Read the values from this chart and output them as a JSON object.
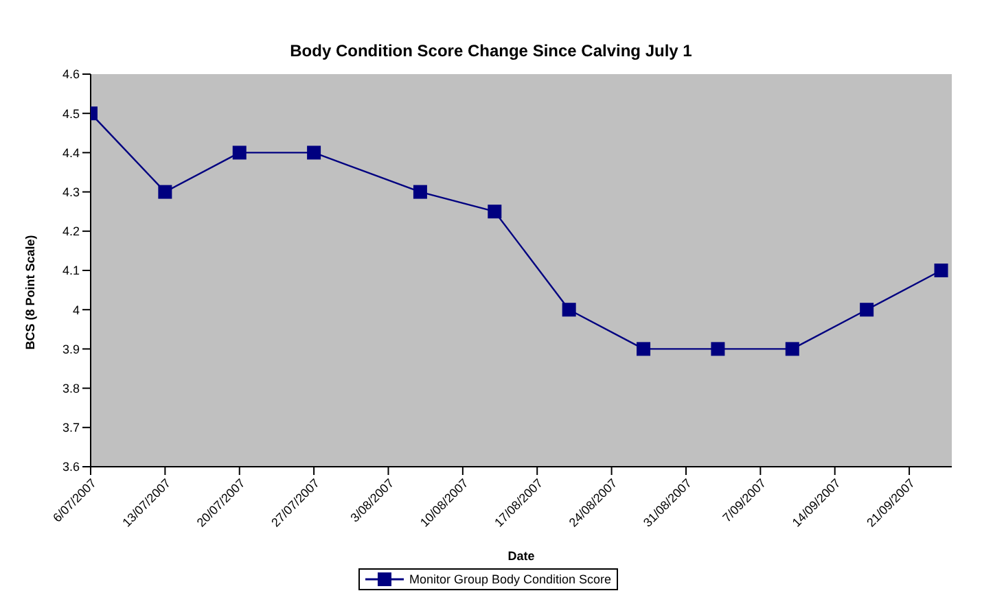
{
  "chart_data": {
    "type": "line",
    "title": "Body Condition Score Change Since Calving July 1",
    "xlabel": "Date",
    "ylabel": "BCS (8 Point Scale)",
    "x": [
      "2007-07-06",
      "2007-07-13",
      "2007-07-20",
      "2007-07-27",
      "2007-08-06",
      "2007-08-13",
      "2007-08-20",
      "2007-08-27",
      "2007-09-03",
      "2007-09-10",
      "2007-09-17",
      "2007-09-24"
    ],
    "series": [
      {
        "name": "Monitor Group Body Condition Score",
        "color": "#000080",
        "values": [
          4.5,
          4.3,
          4.4,
          4.4,
          4.3,
          4.25,
          4.0,
          3.9,
          3.9,
          3.9,
          4.0,
          4.1
        ]
      }
    ],
    "xlim": [
      "2007-07-06",
      "2007-09-25"
    ],
    "xticks": [
      {
        "value": "2007-07-06",
        "label": "6/07/2007"
      },
      {
        "value": "2007-07-13",
        "label": "13/07/2007"
      },
      {
        "value": "2007-07-20",
        "label": "20/07/2007"
      },
      {
        "value": "2007-07-27",
        "label": "27/07/2007"
      },
      {
        "value": "2007-08-03",
        "label": "3/08/2007"
      },
      {
        "value": "2007-08-10",
        "label": "10/08/2007"
      },
      {
        "value": "2007-08-17",
        "label": "17/08/2007"
      },
      {
        "value": "2007-08-24",
        "label": "24/08/2007"
      },
      {
        "value": "2007-08-31",
        "label": "31/08/2007"
      },
      {
        "value": "2007-09-07",
        "label": "7/09/2007"
      },
      {
        "value": "2007-09-14",
        "label": "14/09/2007"
      },
      {
        "value": "2007-09-21",
        "label": "21/09/2007"
      }
    ],
    "ylim": [
      3.6,
      4.6
    ],
    "yticks": [
      3.6,
      3.7,
      3.8,
      3.9,
      4,
      4.1,
      4.2,
      4.3,
      4.4,
      4.5,
      4.6
    ],
    "grid": false,
    "legend": "bottom",
    "marker": "square",
    "line_style": "solid"
  }
}
